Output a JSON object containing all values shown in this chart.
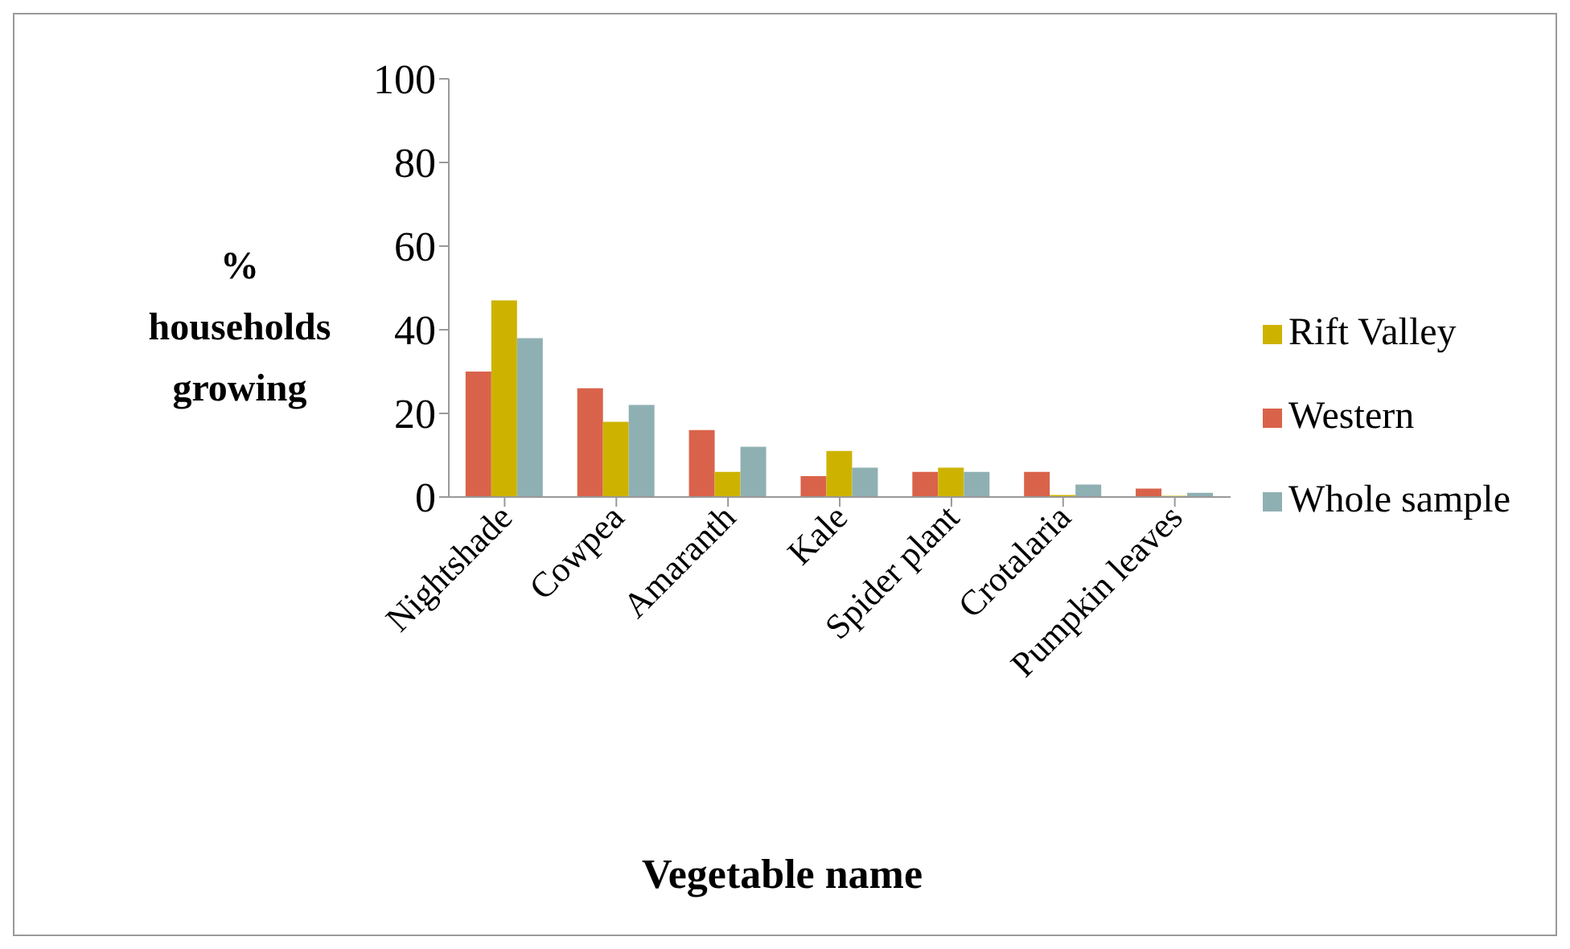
{
  "chart_data": {
    "type": "bar",
    "xlabel": "Vegetable name",
    "ylabel": "% households growing",
    "categories": [
      "Nightshade",
      "Cowpea",
      "Amaranth",
      "Kale",
      "Spider plant",
      "Crotalaria",
      "Pumpkin leaves"
    ],
    "series": [
      {
        "name": "Western",
        "color": "#d9634a",
        "values": [
          30,
          26,
          16,
          5,
          6,
          6,
          2
        ]
      },
      {
        "name": "Rift Valley",
        "color": "#cdb300",
        "values": [
          47,
          18,
          6,
          11,
          7,
          0.5,
          0.3
        ]
      },
      {
        "name": "Whole sample",
        "color": "#8fb0b3",
        "values": [
          38,
          22,
          12,
          7,
          6,
          3,
          1
        ]
      }
    ],
    "ylim": [
      0,
      100
    ],
    "yticks": [
      0,
      20,
      40,
      60,
      80,
      100
    ],
    "grid": false,
    "legend": "right"
  }
}
